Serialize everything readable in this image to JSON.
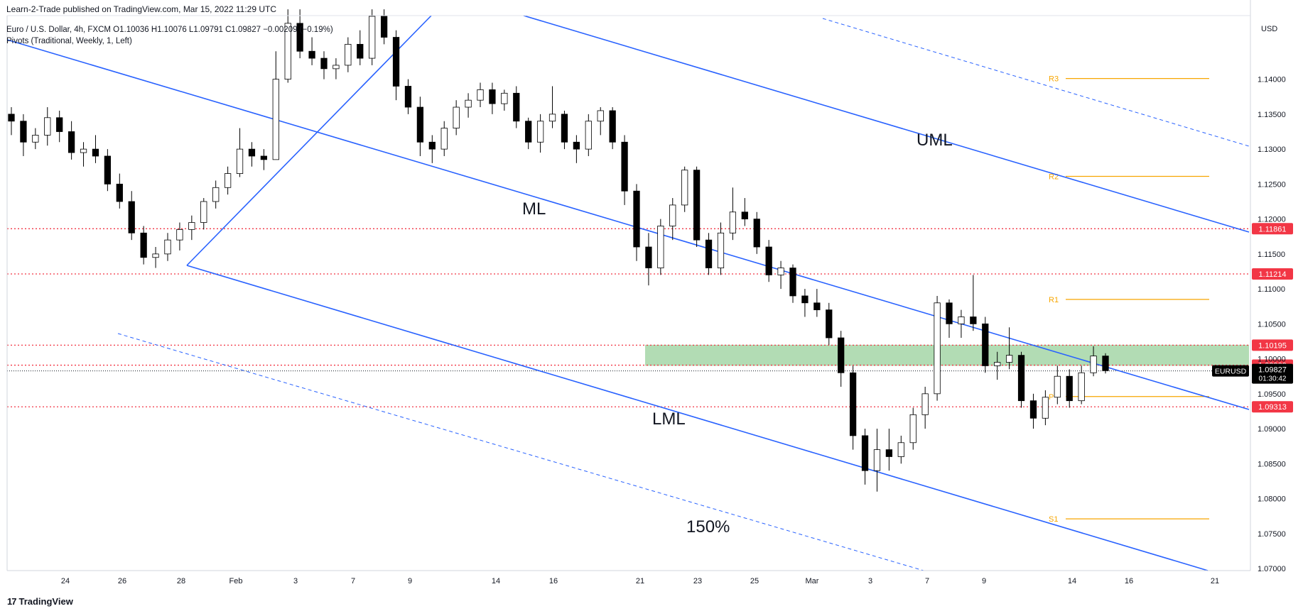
{
  "header": {
    "published": "Learn-2-Trade published on TradingView.com, Mar 15, 2022 11:29 UTC",
    "symbol_line": "Euro / U.S. Dollar, 4h, FXCM  O1.10036  H1.10076  L1.09791  C1.09827  −0.00209 (−0.19%)",
    "indicator_line": "Pivots (Traditional, Weekly, 1, Left)"
  },
  "footer": {
    "brand": "TradingView",
    "logo": "17"
  },
  "currency": "USD",
  "colors": {
    "up": "#ffffff",
    "down": "#000000",
    "wick": "#000000",
    "channel": "#2962ff",
    "level": "#f23645",
    "pivot": "#f7a600",
    "zone": "#a5d6a7",
    "label_bg": "#f23645"
  },
  "chart_data": {
    "type": "candlestick",
    "symbol": "EURUSD",
    "timeframe": "4h",
    "x_ticks": [
      "24",
      "26",
      "28",
      "Feb",
      "3",
      "7",
      "9",
      "14",
      "16",
      "21",
      "23",
      "25",
      "Mar",
      "3",
      "7",
      "9",
      "14",
      "16",
      "21"
    ],
    "y_ticks": [
      "1.14000",
      "1.13500",
      "1.13000",
      "1.12500",
      "1.12000",
      "1.11500",
      "1.11000",
      "1.10500",
      "1.10000",
      "1.09500",
      "1.09000",
      "1.08500",
      "1.08000",
      "1.07500",
      "1.07000"
    ],
    "ylim": [
      1.0697,
      1.1491
    ],
    "horizontal_levels": [
      {
        "value": "1.11861",
        "price": 1.11861
      },
      {
        "value": "1.11214",
        "price": 1.11214
      },
      {
        "value": "1.10195",
        "price": 1.10195
      },
      {
        "value": "1.09909",
        "price": 1.09909
      },
      {
        "value": "1.09313",
        "price": 1.09313
      }
    ],
    "current_price": {
      "label": "EURUSD",
      "value": "1.09827",
      "countdown": "01:30:42",
      "price": 1.09827
    },
    "pivots": [
      {
        "name": "R3",
        "price": 1.1401
      },
      {
        "name": "R2",
        "price": 1.1261
      },
      {
        "name": "R1",
        "price": 1.1085
      },
      {
        "name": "P",
        "price": 1.0946
      },
      {
        "name": "S1",
        "price": 1.0771
      }
    ],
    "zone": {
      "low": 1.099,
      "high": 1.102
    },
    "annotations": [
      "UML",
      "ML",
      "LML",
      "150%"
    ],
    "candles": [
      [
        1.135,
        1.136,
        1.132,
        1.134
      ],
      [
        1.134,
        1.135,
        1.129,
        1.131
      ],
      [
        1.131,
        1.133,
        1.13,
        1.132
      ],
      [
        1.132,
        1.136,
        1.1305,
        1.1345
      ],
      [
        1.1345,
        1.1355,
        1.131,
        1.1325
      ],
      [
        1.1325,
        1.134,
        1.1285,
        1.1295
      ],
      [
        1.1295,
        1.131,
        1.1275,
        1.13
      ],
      [
        1.13,
        1.132,
        1.128,
        1.129
      ],
      [
        1.129,
        1.13,
        1.124,
        1.125
      ],
      [
        1.125,
        1.1265,
        1.1215,
        1.1225
      ],
      [
        1.1225,
        1.124,
        1.117,
        1.118
      ],
      [
        1.118,
        1.119,
        1.1135,
        1.1145
      ],
      [
        1.1145,
        1.116,
        1.113,
        1.115
      ],
      [
        1.115,
        1.118,
        1.114,
        1.117
      ],
      [
        1.117,
        1.1195,
        1.1155,
        1.1185
      ],
      [
        1.1185,
        1.1205,
        1.117,
        1.1195
      ],
      [
        1.1195,
        1.123,
        1.1185,
        1.1225
      ],
      [
        1.1225,
        1.1255,
        1.1215,
        1.1245
      ],
      [
        1.1245,
        1.1275,
        1.1235,
        1.1265
      ],
      [
        1.1265,
        1.133,
        1.126,
        1.13
      ],
      [
        1.13,
        1.131,
        1.1275,
        1.129
      ],
      [
        1.129,
        1.13,
        1.127,
        1.1285
      ],
      [
        1.1285,
        1.144,
        1.1285,
        1.14
      ],
      [
        1.14,
        1.15,
        1.1395,
        1.148
      ],
      [
        1.148,
        1.15,
        1.143,
        1.144
      ],
      [
        1.144,
        1.146,
        1.142,
        1.143
      ],
      [
        1.143,
        1.144,
        1.14,
        1.1415
      ],
      [
        1.1415,
        1.143,
        1.14,
        1.142
      ],
      [
        1.142,
        1.146,
        1.141,
        1.145
      ],
      [
        1.145,
        1.147,
        1.142,
        1.143
      ],
      [
        1.143,
        1.15,
        1.142,
        1.149
      ],
      [
        1.149,
        1.15,
        1.145,
        1.146
      ],
      [
        1.146,
        1.147,
        1.137,
        1.139
      ],
      [
        1.139,
        1.14,
        1.135,
        1.136
      ],
      [
        1.136,
        1.1375,
        1.129,
        1.131
      ],
      [
        1.131,
        1.132,
        1.128,
        1.13
      ],
      [
        1.13,
        1.134,
        1.129,
        1.133
      ],
      [
        1.133,
        1.137,
        1.132,
        1.136
      ],
      [
        1.136,
        1.138,
        1.1345,
        1.137
      ],
      [
        1.137,
        1.1395,
        1.136,
        1.1385
      ],
      [
        1.1385,
        1.1395,
        1.135,
        1.1365
      ],
      [
        1.1365,
        1.1385,
        1.1355,
        1.138
      ],
      [
        1.138,
        1.139,
        1.133,
        1.134
      ],
      [
        1.134,
        1.1345,
        1.13,
        1.131
      ],
      [
        1.131,
        1.135,
        1.1295,
        1.134
      ],
      [
        1.134,
        1.139,
        1.133,
        1.135
      ],
      [
        1.135,
        1.1355,
        1.13,
        1.131
      ],
      [
        1.131,
        1.132,
        1.128,
        1.13
      ],
      [
        1.13,
        1.135,
        1.129,
        1.134
      ],
      [
        1.134,
        1.136,
        1.132,
        1.1355
      ],
      [
        1.1355,
        1.136,
        1.13,
        1.131
      ],
      [
        1.131,
        1.132,
        1.122,
        1.124
      ],
      [
        1.124,
        1.125,
        1.114,
        1.116
      ],
      [
        1.116,
        1.118,
        1.1105,
        1.113
      ],
      [
        1.113,
        1.12,
        1.112,
        1.119
      ],
      [
        1.119,
        1.123,
        1.117,
        1.122
      ],
      [
        1.122,
        1.1275,
        1.121,
        1.127
      ],
      [
        1.127,
        1.1275,
        1.116,
        1.117
      ],
      [
        1.117,
        1.118,
        1.112,
        1.113
      ],
      [
        1.113,
        1.1195,
        1.112,
        1.118
      ],
      [
        1.118,
        1.1245,
        1.117,
        1.121
      ],
      [
        1.121,
        1.123,
        1.119,
        1.12
      ],
      [
        1.12,
        1.121,
        1.115,
        1.116
      ],
      [
        1.116,
        1.117,
        1.111,
        1.112
      ],
      [
        1.112,
        1.114,
        1.11,
        1.113
      ],
      [
        1.113,
        1.1135,
        1.108,
        1.109
      ],
      [
        1.109,
        1.11,
        1.106,
        1.108
      ],
      [
        1.108,
        1.11,
        1.106,
        1.107
      ],
      [
        1.107,
        1.108,
        1.102,
        1.103
      ],
      [
        1.103,
        1.104,
        1.096,
        1.098
      ],
      [
        1.098,
        1.099,
        1.087,
        1.089
      ],
      [
        1.089,
        1.09,
        1.082,
        1.084
      ],
      [
        1.084,
        1.09,
        1.081,
        1.087
      ],
      [
        1.087,
        1.09,
        1.084,
        1.086
      ],
      [
        1.086,
        1.089,
        1.085,
        1.088
      ],
      [
        1.088,
        1.093,
        1.087,
        1.092
      ],
      [
        1.092,
        1.096,
        1.09,
        1.095
      ],
      [
        1.095,
        1.109,
        1.094,
        1.108
      ],
      [
        1.108,
        1.1085,
        1.103,
        1.105
      ],
      [
        1.105,
        1.107,
        1.103,
        1.106
      ],
      [
        1.106,
        1.112,
        1.104,
        1.105
      ],
      [
        1.105,
        1.106,
        1.098,
        1.099
      ],
      [
        1.099,
        1.101,
        1.097,
        1.0995
      ],
      [
        1.0995,
        1.1045,
        1.0985,
        1.1005
      ],
      [
        1.1005,
        1.101,
        1.093,
        1.094
      ],
      [
        1.094,
        1.095,
        1.09,
        1.0915
      ],
      [
        1.0915,
        1.0955,
        1.0905,
        1.0945
      ],
      [
        1.0945,
        1.099,
        1.0935,
        1.0975
      ],
      [
        1.0975,
        1.0985,
        1.093,
        1.094
      ],
      [
        1.094,
        1.099,
        1.0935,
        1.098
      ],
      [
        1.098,
        1.1018,
        1.0975,
        1.1004
      ],
      [
        1.1004,
        1.1008,
        1.0979,
        1.0983
      ]
    ]
  }
}
